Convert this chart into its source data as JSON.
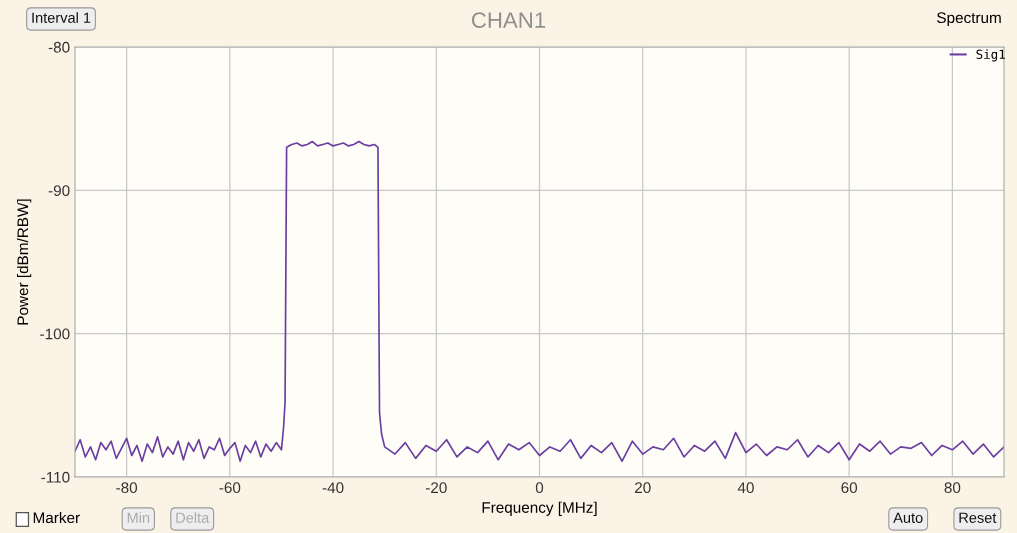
{
  "chart_data": {
    "type": "line",
    "title": "CHAN1",
    "xlabel": "Frequency [MHz]",
    "ylabel": "Power [dBm/RBW]",
    "xlim": [
      -90,
      90
    ],
    "xticks": [
      -80,
      -60,
      -40,
      -20,
      0,
      20,
      40,
      60,
      80
    ],
    "ylim": [
      -110,
      -80
    ],
    "yticks": [
      -110,
      -100,
      -90,
      -80
    ],
    "grid": true,
    "legend": "top right",
    "marker": "none",
    "line_style": "solid",
    "annotations": [
      "Interval 1",
      "Spectrum",
      "Marker",
      "Min",
      "Delta",
      "Auto",
      "Reset"
    ],
    "series": [
      {
        "name": "Sig1",
        "color": "#6a3ea1",
        "x": [
          -90,
          -89,
          -88,
          -87,
          -86,
          -85,
          -84,
          -83,
          -82,
          -81,
          -80,
          -79,
          -78,
          -77,
          -76,
          -75,
          -74,
          -73,
          -72,
          -71,
          -70,
          -69,
          -68,
          -67,
          -66,
          -65,
          -64,
          -63,
          -62,
          -61,
          -60,
          -59,
          -58,
          -57,
          -56,
          -55,
          -54,
          -53,
          -52,
          -51,
          -50,
          -49.6,
          -49.3,
          -49.0,
          -48,
          -47,
          -46,
          -45,
          -44,
          -43,
          -42,
          -41,
          -40,
          -39,
          -38,
          -37,
          -36,
          -35,
          -34,
          -33,
          -32,
          -31.3,
          -31.0,
          -30.6,
          -30,
          -28,
          -26,
          -24,
          -22,
          -20,
          -18,
          -16,
          -14,
          -12,
          -10,
          -8,
          -6,
          -4,
          -2,
          0,
          2,
          4,
          6,
          8,
          10,
          12,
          14,
          16,
          18,
          20,
          22,
          24,
          26,
          28,
          30,
          32,
          34,
          36,
          38,
          40,
          42,
          44,
          46,
          48,
          50,
          52,
          54,
          56,
          58,
          60,
          62,
          64,
          66,
          68,
          70,
          72,
          74,
          76,
          78,
          80,
          82,
          84,
          86,
          88,
          90
        ],
        "values": [
          -108.2,
          -107.4,
          -108.6,
          -107.9,
          -108.8,
          -107.6,
          -108.1,
          -107.5,
          -108.7,
          -108.0,
          -107.3,
          -108.5,
          -107.8,
          -108.9,
          -107.7,
          -108.3,
          -107.2,
          -108.6,
          -107.9,
          -108.4,
          -107.5,
          -108.8,
          -107.6,
          -108.2,
          -107.4,
          -108.7,
          -107.9,
          -108.1,
          -107.3,
          -108.5,
          -108.0,
          -107.6,
          -108.9,
          -107.8,
          -108.3,
          -107.5,
          -108.6,
          -107.7,
          -108.2,
          -107.6,
          -108.1,
          -106.6,
          -104.8,
          -87.0,
          -86.8,
          -86.7,
          -86.9,
          -86.8,
          -86.6,
          -86.9,
          -86.8,
          -86.7,
          -86.9,
          -86.8,
          -86.7,
          -86.9,
          -86.8,
          -86.6,
          -86.8,
          -86.9,
          -86.8,
          -87.0,
          -105.5,
          -107.0,
          -107.9,
          -108.4,
          -107.6,
          -108.7,
          -107.8,
          -108.2,
          -107.4,
          -108.6,
          -107.9,
          -108.3,
          -107.5,
          -108.8,
          -107.7,
          -108.1,
          -107.6,
          -108.5,
          -107.9,
          -108.2,
          -107.4,
          -108.7,
          -107.8,
          -108.3,
          -107.6,
          -108.9,
          -107.5,
          -108.4,
          -107.9,
          -108.1,
          -107.3,
          -108.6,
          -107.8,
          -108.2,
          -107.5,
          -108.7,
          -106.9,
          -108.3,
          -107.7,
          -108.5,
          -107.9,
          -108.1,
          -107.4,
          -108.6,
          -107.8,
          -108.3,
          -107.6,
          -108.8,
          -107.7,
          -108.2,
          -107.5,
          -108.4,
          -107.9,
          -108.0,
          -107.6,
          -108.5,
          -107.8,
          -108.1,
          -107.5,
          -108.4,
          -107.7,
          -108.6,
          -107.9
        ]
      }
    ]
  }
}
